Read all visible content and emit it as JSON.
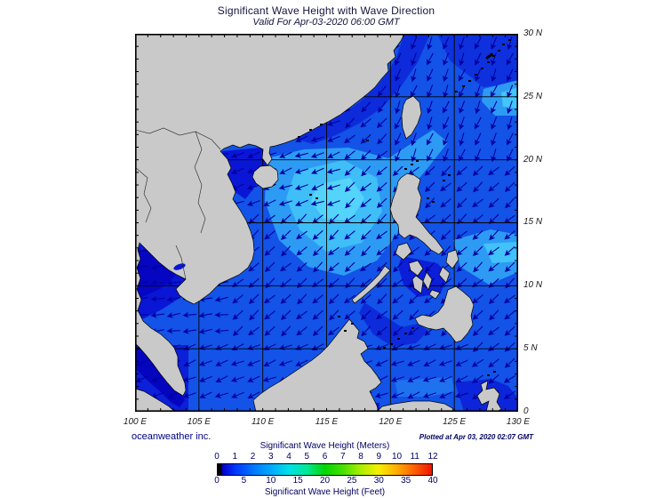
{
  "title": "Significant Wave Height with Wave Direction",
  "subtitle": "Valid For Apr-03-2020 06:00 GMT",
  "credit": "oceanweather inc.",
  "plotted": "Plotted at Apr 03, 2020 02:07 GMT",
  "axes": {
    "lon_ticks": [
      "100 E",
      "105 E",
      "110 E",
      "115 E",
      "120 E",
      "125 E",
      "130 E"
    ],
    "lat_ticks": [
      "30 N",
      "25 N",
      "20 N",
      "15 N",
      "10 N",
      "5 N",
      "0"
    ]
  },
  "legend": {
    "meters_label": "Significant Wave Height (Meters)",
    "feet_label": "Significant Wave Height (Feet)",
    "meters_ticks": [
      "0",
      "1",
      "2",
      "3",
      "4",
      "5",
      "6",
      "7",
      "8",
      "9",
      "10",
      "11",
      "12"
    ],
    "feet_ticks": [
      "0",
      "5",
      "10",
      "15",
      "20",
      "25",
      "30",
      "35",
      "40"
    ]
  },
  "map": {
    "ocean_base": "#1353e7",
    "land_color": "#c9c9c9",
    "coast_color": "#000000",
    "arrow_color": "#0000a0",
    "grid_color": "#000000"
  },
  "chart_data": {
    "type": "heatmap",
    "title": "Significant Wave Height with Wave Direction",
    "valid_time": "Apr-03-2020 06:00 GMT",
    "plotted_time": "Apr 03, 2020 02:07 GMT",
    "region": {
      "lon_deg_e": [
        100,
        130
      ],
      "lat_deg_n": [
        0,
        30
      ]
    },
    "colorbar": {
      "top_units": "Meters",
      "top_range": [
        0,
        12
      ],
      "top_ticks": [
        0,
        1,
        2,
        3,
        4,
        5,
        6,
        7,
        8,
        9,
        10,
        11,
        12
      ],
      "bottom_units": "Feet",
      "bottom_range": [
        0,
        40
      ],
      "bottom_ticks": [
        0,
        5,
        10,
        15,
        20,
        25,
        30,
        35,
        40
      ],
      "colors_low_to_high": [
        "black",
        "blue",
        "cyan",
        "green",
        "yellow",
        "orange",
        "red"
      ]
    },
    "overlay": "wave direction arrows pointing predominantly southwest (NE monsoon swell)",
    "observed_values": "open-water heights mostly 1-3 m; brightest (~2.5-3 m) in central South China Sea and east of Taiwan/Philippines; <1 m in Gulfs of Tonkin and Thailand and Malacca Strait"
  }
}
